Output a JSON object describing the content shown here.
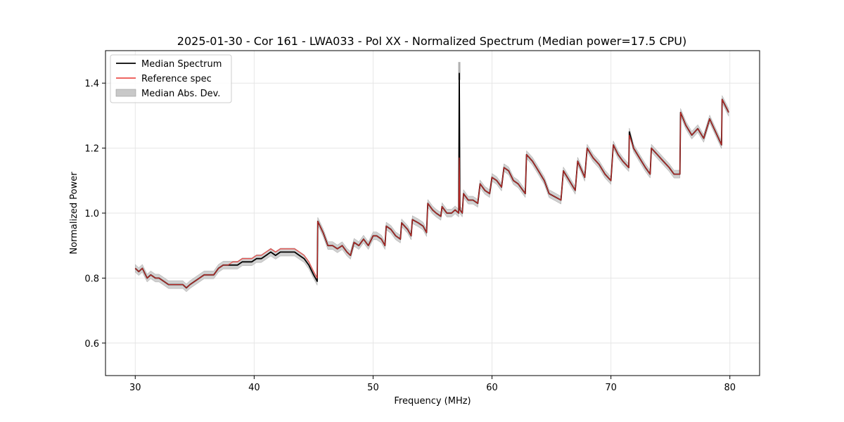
{
  "chart_data": {
    "type": "line",
    "title": "2025-01-30 - Cor 161 - LWA033 - Pol XX - Normalized Spectrum (Median power=17.5 CPU)",
    "xlabel": "Frequency (MHz)",
    "ylabel": "Normalized Power",
    "xlim": [
      27.5,
      82.5
    ],
    "ylim": [
      0.5,
      1.5
    ],
    "xticks": [
      30,
      40,
      50,
      60,
      70,
      80
    ],
    "yticks": [
      0.6,
      0.8,
      1.0,
      1.2,
      1.4
    ],
    "xtick_labels": [
      "30",
      "40",
      "50",
      "60",
      "70",
      "80"
    ],
    "ytick_labels": [
      "0.6",
      "0.8",
      "1.0",
      "1.2",
      "1.4"
    ],
    "grid": true,
    "legend_position": "top-left",
    "legend": [
      "Median Spectrum",
      "Reference spec",
      "Median Abs. Dev."
    ],
    "colors": {
      "median": "#000000",
      "reference": "#e8332f",
      "mad": "#bdbdbd",
      "overlap": "#8b0000"
    },
    "series": [
      {
        "name": "Median Spectrum",
        "x": [
          30.0,
          30.3,
          30.6,
          31.0,
          31.3,
          31.7,
          32.0,
          32.4,
          32.8,
          33.2,
          33.6,
          34.0,
          34.3,
          34.6,
          35.0,
          35.4,
          35.8,
          36.2,
          36.6,
          37.0,
          37.4,
          37.8,
          38.2,
          38.6,
          39.0,
          39.4,
          39.8,
          40.2,
          40.6,
          41.0,
          41.4,
          41.8,
          42.2,
          42.6,
          43.0,
          43.4,
          43.8,
          44.2,
          44.6,
          45.0,
          45.3,
          45.35,
          45.8,
          46.2,
          46.6,
          47.0,
          47.4,
          47.8,
          48.1,
          48.4,
          48.8,
          49.2,
          49.6,
          50.0,
          50.3,
          50.7,
          51.0,
          51.1,
          51.5,
          51.9,
          52.3,
          52.4,
          52.9,
          53.2,
          53.3,
          53.8,
          54.2,
          54.5,
          54.6,
          55.0,
          55.3,
          55.7,
          55.8,
          56.2,
          56.6,
          56.9,
          57.2,
          57.25,
          57.3,
          57.5,
          57.6,
          58.0,
          58.4,
          58.8,
          59.0,
          59.4,
          59.8,
          60.0,
          60.4,
          60.8,
          61.0,
          61.4,
          61.8,
          62.2,
          62.6,
          62.8,
          62.9,
          63.4,
          63.9,
          64.4,
          64.8,
          65.3,
          65.8,
          66.0,
          66.5,
          67.0,
          67.2,
          67.8,
          68.0,
          68.5,
          69.0,
          69.5,
          70.0,
          70.2,
          70.6,
          71.0,
          71.5,
          71.55,
          71.9,
          72.4,
          72.9,
          73.3,
          73.4,
          73.9,
          74.4,
          74.9,
          75.3,
          75.8,
          75.85,
          76.3,
          76.8,
          77.3,
          77.8,
          78.3,
          78.8,
          79.3,
          79.35,
          79.9
        ],
        "values": [
          0.83,
          0.82,
          0.83,
          0.8,
          0.81,
          0.8,
          0.8,
          0.79,
          0.78,
          0.78,
          0.78,
          0.78,
          0.77,
          0.78,
          0.79,
          0.8,
          0.81,
          0.81,
          0.81,
          0.83,
          0.84,
          0.84,
          0.84,
          0.84,
          0.85,
          0.85,
          0.85,
          0.86,
          0.86,
          0.87,
          0.88,
          0.87,
          0.88,
          0.88,
          0.88,
          0.88,
          0.87,
          0.86,
          0.84,
          0.81,
          0.79,
          0.975,
          0.94,
          0.9,
          0.9,
          0.89,
          0.9,
          0.88,
          0.87,
          0.91,
          0.9,
          0.92,
          0.9,
          0.93,
          0.93,
          0.92,
          0.9,
          0.96,
          0.95,
          0.93,
          0.92,
          0.97,
          0.95,
          0.93,
          0.98,
          0.97,
          0.96,
          0.94,
          1.03,
          1.01,
          1.0,
          0.99,
          1.02,
          1.0,
          1.0,
          1.01,
          1.0,
          1.43,
          1.01,
          1.0,
          1.06,
          1.04,
          1.04,
          1.03,
          1.09,
          1.07,
          1.06,
          1.11,
          1.1,
          1.08,
          1.14,
          1.13,
          1.1,
          1.09,
          1.07,
          1.06,
          1.18,
          1.16,
          1.13,
          1.1,
          1.06,
          1.05,
          1.04,
          1.13,
          1.1,
          1.07,
          1.16,
          1.11,
          1.2,
          1.17,
          1.15,
          1.12,
          1.1,
          1.21,
          1.18,
          1.16,
          1.14,
          1.25,
          1.2,
          1.17,
          1.14,
          1.12,
          1.2,
          1.18,
          1.16,
          1.14,
          1.12,
          1.12,
          1.31,
          1.27,
          1.24,
          1.26,
          1.23,
          1.29,
          1.25,
          1.21,
          1.35,
          1.31
        ]
      },
      {
        "name": "Reference spec",
        "x": [
          30.0,
          30.3,
          30.6,
          31.0,
          31.3,
          31.7,
          32.0,
          32.4,
          32.8,
          33.2,
          33.6,
          34.0,
          34.3,
          34.6,
          35.0,
          35.4,
          35.8,
          36.2,
          36.6,
          37.0,
          37.4,
          37.8,
          38.2,
          38.6,
          39.0,
          39.4,
          39.8,
          40.2,
          40.6,
          41.0,
          41.4,
          41.8,
          42.2,
          42.6,
          43.0,
          43.4,
          43.8,
          44.2,
          44.6,
          45.0,
          45.3,
          45.35,
          45.8,
          46.2,
          46.6,
          47.0,
          47.4,
          47.8,
          48.1,
          48.4,
          48.8,
          49.2,
          49.6,
          50.0,
          50.3,
          50.7,
          51.0,
          51.1,
          51.5,
          51.9,
          52.3,
          52.4,
          52.9,
          53.2,
          53.3,
          53.8,
          54.2,
          54.5,
          54.6,
          55.0,
          55.3,
          55.7,
          55.8,
          56.2,
          56.6,
          56.9,
          57.2,
          57.25,
          57.3,
          57.5,
          57.6,
          58.0,
          58.4,
          58.8,
          59.0,
          59.4,
          59.8,
          60.0,
          60.4,
          60.8,
          61.0,
          61.4,
          61.8,
          62.2,
          62.6,
          62.8,
          62.9,
          63.4,
          63.9,
          64.4,
          64.8,
          65.3,
          65.8,
          66.0,
          66.5,
          67.0,
          67.2,
          67.8,
          68.0,
          68.5,
          69.0,
          69.5,
          70.0,
          70.2,
          70.6,
          71.0,
          71.5,
          71.55,
          71.9,
          72.4,
          72.9,
          73.3,
          73.4,
          73.9,
          74.4,
          74.9,
          75.3,
          75.8,
          75.85,
          76.3,
          76.8,
          77.3,
          77.8,
          78.3,
          78.8,
          79.3,
          79.35,
          79.9
        ],
        "values": [
          0.83,
          0.82,
          0.83,
          0.8,
          0.81,
          0.8,
          0.8,
          0.79,
          0.78,
          0.78,
          0.78,
          0.78,
          0.77,
          0.78,
          0.79,
          0.8,
          0.81,
          0.81,
          0.81,
          0.83,
          0.84,
          0.84,
          0.85,
          0.85,
          0.86,
          0.86,
          0.86,
          0.87,
          0.87,
          0.88,
          0.89,
          0.88,
          0.89,
          0.89,
          0.89,
          0.89,
          0.88,
          0.87,
          0.85,
          0.82,
          0.8,
          0.975,
          0.94,
          0.9,
          0.9,
          0.89,
          0.9,
          0.88,
          0.87,
          0.91,
          0.9,
          0.92,
          0.9,
          0.93,
          0.93,
          0.92,
          0.9,
          0.96,
          0.95,
          0.93,
          0.92,
          0.97,
          0.95,
          0.93,
          0.98,
          0.97,
          0.96,
          0.94,
          1.03,
          1.01,
          1.0,
          0.99,
          1.02,
          1.0,
          1.0,
          1.01,
          1.0,
          1.17,
          1.01,
          1.0,
          1.06,
          1.04,
          1.04,
          1.03,
          1.09,
          1.07,
          1.06,
          1.11,
          1.1,
          1.08,
          1.14,
          1.13,
          1.1,
          1.09,
          1.07,
          1.06,
          1.18,
          1.16,
          1.13,
          1.1,
          1.06,
          1.05,
          1.04,
          1.13,
          1.1,
          1.07,
          1.16,
          1.11,
          1.2,
          1.17,
          1.15,
          1.12,
          1.1,
          1.21,
          1.18,
          1.16,
          1.14,
          1.24,
          1.2,
          1.17,
          1.14,
          1.12,
          1.2,
          1.18,
          1.16,
          1.14,
          1.12,
          1.12,
          1.31,
          1.27,
          1.24,
          1.26,
          1.23,
          1.29,
          1.25,
          1.21,
          1.35,
          1.31
        ]
      },
      {
        "name": "Median Abs. Dev.",
        "type": "band",
        "half_width": 0.012
      }
    ]
  }
}
